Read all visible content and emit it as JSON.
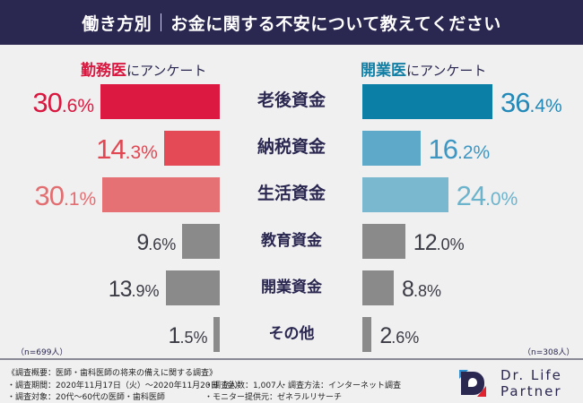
{
  "header": {
    "title_left": "働き方別",
    "title_right": "お金に関する不安について教えてください"
  },
  "groups": {
    "left": {
      "highlight": "勤務医",
      "suffix": "にアンケート",
      "color": "#d9173f",
      "n_note": "（n=699人）"
    },
    "right": {
      "highlight": "開業医",
      "suffix": "にアンケート",
      "color": "#137fa4",
      "n_note": "（n=308人）"
    }
  },
  "chart_data": {
    "type": "bar",
    "orientation": "horizontal-butterfly",
    "title": "働き方別｜お金に関する不安について教えてください",
    "categories": [
      "老後資金",
      "納税資金",
      "生活資金",
      "教育資金",
      "開業資金",
      "その他"
    ],
    "unit": "%",
    "series": [
      {
        "name": "勤務医",
        "side": "left",
        "n": 699,
        "values": [
          30.6,
          14.3,
          30.1,
          9.6,
          13.9,
          1.5
        ],
        "colors": [
          "#dc1a41",
          "#e34a55",
          "#e67174",
          "#8a8a8a",
          "#8a8a8a",
          "#8a8a8a"
        ],
        "label_colors": [
          "#d9173f",
          "#e04752",
          "#e36e71",
          "#3b3b45",
          "#3b3b45",
          "#3b3b45"
        ]
      },
      {
        "name": "開業医",
        "side": "right",
        "n": 308,
        "values": [
          36.4,
          16.2,
          24.0,
          12.0,
          8.8,
          2.6
        ],
        "colors": [
          "#0b7fa5",
          "#5ea8c9",
          "#7ab8cf",
          "#8a8a8a",
          "#8a8a8a",
          "#8a8a8a"
        ],
        "label_colors": [
          "#2289b8",
          "#3e97c2",
          "#6cb3cc",
          "#3b3b45",
          "#3b3b45",
          "#3b3b45"
        ]
      }
    ],
    "xlabel": "",
    "ylabel": "",
    "grid": false,
    "legend": "top"
  },
  "footer": {
    "title": "《調査概要：医師・歯科医師の将来の備えに関する調査》",
    "items": [
      "調査期間：2020年11月17日（火）〜2020年11月20日（金）",
      "調査人数：1,007人",
      "調査方法：インターネット調査",
      "調査対象：20代〜60代の医師・歯科医師",
      "モニター提供元：ゼネラルリサーチ"
    ]
  },
  "logo": {
    "line1": "Dr. Life",
    "line2": "Partner"
  }
}
